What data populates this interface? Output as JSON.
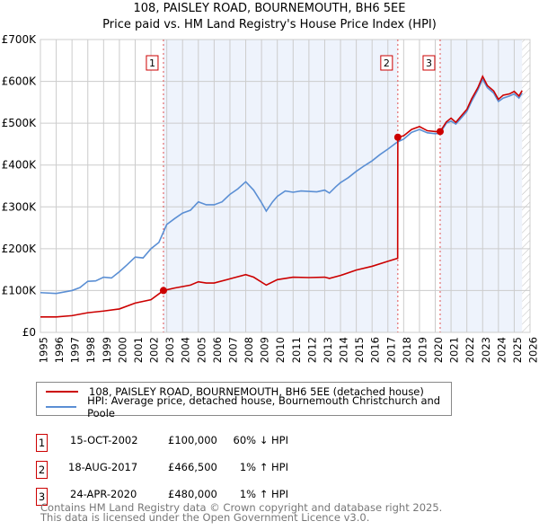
{
  "chart_data": {
    "type": "line",
    "title": "108, PAISLEY ROAD, BOURNEMOUTH, BH6 5EE",
    "subtitle": "Price paid vs. HM Land Registry's House Price Index (HPI)",
    "xlim": [
      1995,
      2026
    ],
    "ylim": [
      0,
      700000
    ],
    "x_ticks": [
      "1995",
      "1996",
      "1997",
      "1998",
      "1999",
      "2000",
      "2001",
      "2002",
      "2003",
      "2004",
      "2005",
      "2006",
      "2007",
      "2008",
      "2009",
      "2010",
      "2011",
      "2012",
      "2013",
      "2014",
      "2015",
      "2016",
      "2017",
      "2018",
      "2019",
      "2020",
      "2021",
      "2022",
      "2023",
      "2024",
      "2025",
      "2026"
    ],
    "y_ticks": [
      {
        "v": 0,
        "label": "£0"
      },
      {
        "v": 100000,
        "label": "£100K"
      },
      {
        "v": 200000,
        "label": "£200K"
      },
      {
        "v": 300000,
        "label": "£300K"
      },
      {
        "v": 400000,
        "label": "£400K"
      },
      {
        "v": 500000,
        "label": "£500K"
      },
      {
        "v": 600000,
        "label": "£600K"
      },
      {
        "v": 700000,
        "label": "£700K"
      }
    ],
    "grid": true,
    "series": [
      {
        "name": "108, PAISLEY ROAD, BOURNEMOUTH, BH6 5EE (detached house)",
        "color": "#cc0000",
        "x": [
          1995,
          1996,
          1997,
          1998,
          1999,
          2000,
          2001,
          2002,
          2002.79,
          2003.5,
          2004.5,
          2005,
          2005.5,
          2006,
          2007,
          2008,
          2008.5,
          2009.3,
          2010,
          2011,
          2012,
          2013,
          2013.3,
          2014,
          2015,
          2016,
          2017,
          2017.62,
          2017.63,
          2018,
          2018.5,
          2019,
          2019.5,
          2020,
          2020.31,
          2020.7,
          2021,
          2021.3,
          2021.7,
          2022,
          2022.3,
          2022.7,
          2023,
          2023.3,
          2023.7,
          2024,
          2024.3,
          2024.7,
          2025,
          2025.3,
          2025.5
        ],
        "y": [
          37000,
          37000,
          40000,
          47000,
          51000,
          56000,
          70000,
          78000,
          100000,
          106000,
          113000,
          121000,
          118000,
          118000,
          128000,
          138000,
          132000,
          113000,
          126000,
          132000,
          131000,
          132000,
          129000,
          136000,
          149000,
          158000,
          170000,
          177000,
          466500,
          470000,
          485000,
          492000,
          482000,
          480000,
          480000,
          503000,
          512000,
          502000,
          520000,
          533000,
          558000,
          585000,
          612000,
          590000,
          577000,
          557000,
          567000,
          570000,
          576000,
          565000,
          578000
        ]
      },
      {
        "name": "HPI: Average price, detached house, Bournemouth Christchurch and Poole",
        "color": "#5b8fd4",
        "x": [
          1995,
          1996,
          1997,
          1997.5,
          1998,
          1998.5,
          1999,
          1999.5,
          2000,
          2000.5,
          2001,
          2001.5,
          2002,
          2002.5,
          2003,
          2003.5,
          2004,
          2004.5,
          2005,
          2005.5,
          2006,
          2006.5,
          2007,
          2007.5,
          2008,
          2008.5,
          2009,
          2009.3,
          2009.7,
          2010,
          2010.5,
          2011,
          2011.5,
          2012,
          2012.5,
          2013,
          2013.3,
          2013.7,
          2014,
          2014.5,
          2015,
          2015.5,
          2016,
          2016.5,
          2017,
          2017.6,
          2018,
          2018.5,
          2019,
          2019.5,
          2020,
          2020.3,
          2020.7,
          2021,
          2021.3,
          2021.7,
          2022,
          2022.3,
          2022.7,
          2023,
          2023.3,
          2023.7,
          2024,
          2024.3,
          2024.7,
          2025,
          2025.3,
          2025.5
        ],
        "y": [
          95000,
          93000,
          100000,
          107000,
          122000,
          123000,
          132000,
          130000,
          145000,
          162000,
          180000,
          178000,
          200000,
          215000,
          258000,
          272000,
          285000,
          292000,
          312000,
          305000,
          305000,
          312000,
          330000,
          343000,
          360000,
          340000,
          310000,
          290000,
          312000,
          325000,
          338000,
          335000,
          338000,
          337000,
          336000,
          340000,
          333000,
          348000,
          358000,
          370000,
          385000,
          398000,
          410000,
          425000,
          438000,
          455000,
          462000,
          478000,
          485000,
          477000,
          475000,
          476000,
          500000,
          505000,
          498000,
          515000,
          528000,
          552000,
          580000,
          605000,
          585000,
          572000,
          552000,
          560000,
          565000,
          570000,
          560000,
          572000
        ]
      }
    ],
    "sales": [
      {
        "n": "1",
        "x": 2002.79,
        "date": "15-OCT-2002",
        "price_value": 100000,
        "price": "£100,000",
        "hpi": "60% ↓ HPI"
      },
      {
        "n": "2",
        "x": 2017.63,
        "date": "18-AUG-2017",
        "price_value": 466500,
        "price": "£466,500",
        "hpi": "1% ↑ HPI"
      },
      {
        "n": "3",
        "x": 2020.31,
        "date": "24-APR-2020",
        "price_value": 480000,
        "price": "£480,000",
        "hpi": "1% ↑ HPI"
      }
    ],
    "forecast_from": 2025.5,
    "legend_placement": "below"
  },
  "footer": {
    "line1": "Contains HM Land Registry data © Crown copyright and database right 2025.",
    "line2": "This data is licensed under the Open Government Licence v3.0."
  }
}
